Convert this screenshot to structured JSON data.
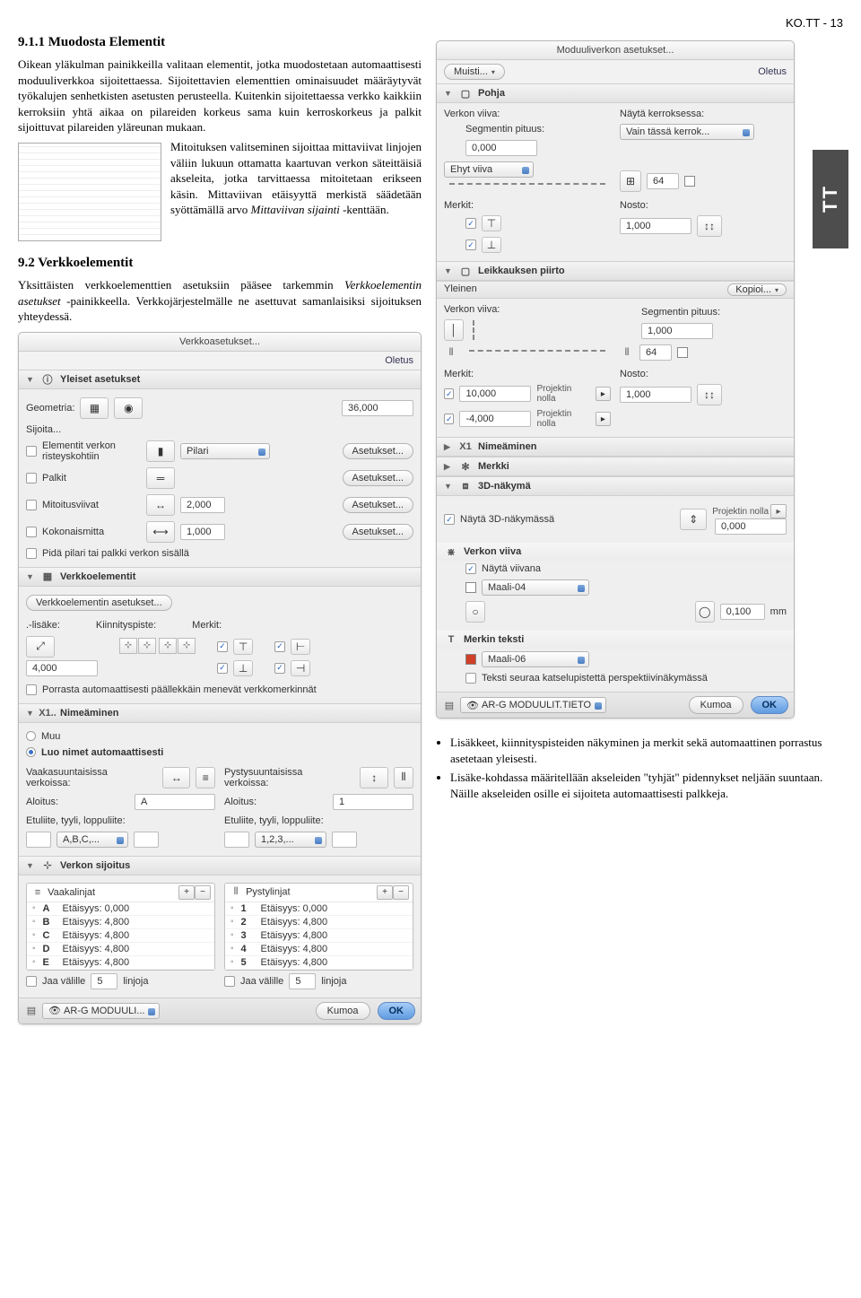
{
  "page_header": "KO.TT - 13",
  "side_tab": "TT",
  "text": {
    "h911": "9.1.1  Muodosta Elementit",
    "p1": "Oikean yläkulman painikkeilla valitaan elementit, jotka muodostetaan automaattisesti moduuliverkkoa sijoitettaessa. Sijoitettavien elementtien ominaisuudet määräytyvät työkalujen senhetkisten asetusten perusteella. Kuitenkin sijoitettaessa verkko kaikkiin kerroksiin yhtä aikaa on pilareiden korkeus sama kuin kerroskorkeus ja palkit sijoittuvat pilareiden yläreunan mukaan.",
    "p2a": "Mitoituksen valitseminen sijoittaa mittaviivat linjojen väliin lukuun ottamatta kaartuvan verkon säteittäisiä akseleita, jotka tarvittaessa mitoitetaan erikseen käsin. Mittaviivan etäisyyttä merkistä säädetään syöttämällä arvo ",
    "p2b": "Mittaviivan sijainti",
    "p2c": " -kenttään.",
    "h92": "9.2   Verkkoelementit",
    "p3a": "Yksittäisten verkkoelementtien asetuksiin pääsee tarkemmin ",
    "p3b": "Verkkoelementin asetukset",
    "p3c": " -painikkeella. Verkkojärjestelmälle ne asettuvat samanlaisiksi sijoituksen yhteydessä.",
    "bul1": "Lisäkkeet, kiinnityspisteiden näkyminen ja merkit sekä automaattinen porrastus asetetaan yleisesti.",
    "bul2": "Lisäke-kohdassa määritellään akseleiden \"tyhjät\" pidennykset neljään suuntaan. Näille akseleiden osille ei sijoiteta automaattisesti palkkeja."
  },
  "verkko": {
    "title": "Verkkoasetukset...",
    "oletus": "Oletus",
    "s_yleiset": "Yleiset asetukset",
    "geometria": "Geometria:",
    "geom_val": "36,000",
    "sijoita": "Sijoita...",
    "row_e1": "Elementit verkon risteyskohtiin",
    "pilari": "Pilari",
    "asetukset": "Asetukset...",
    "row_e2": "Palkit",
    "row_e3": "Mitoitusviivat",
    "mit_val": "2,000",
    "row_e4": "Kokonaismitta",
    "kok_val": "1,000",
    "pida": "Pidä pilari tai palkki verkon sisällä",
    "s_verkko": "Verkkoelementit",
    "ve_btn": "Verkkoelementin asetukset...",
    "lisake": ".-lisäke:",
    "kiinn": "Kiinnityspiste:",
    "merkit": "Merkit:",
    "lisake_val": "4,000",
    "porrasta": "Porrasta automaattisesti päällekkäin menevät verkkomerkinnät",
    "s_nime": "Nimeäminen",
    "rad_muu": "Muu",
    "rad_auto": "Luo nimet automaattisesti",
    "vaaka_lbl": "Vaakasuuntaisissa verkoissa:",
    "pysty_lbl": "Pystysuuntaisissa verkoissa:",
    "aloitus": "Aloitus:",
    "aloitus_a": "A",
    "aloitus_1": "1",
    "etuliite": "Etuliite, tyyli, loppuliite:",
    "abc": "A,B,C,...",
    "n123": "1,2,3,...",
    "s_sijoitus": "Verkon sijoitus",
    "vaakalinjat": "Vaakalinjat",
    "pystylinjat": "Pystylinjat",
    "h_rows": [
      {
        "k": "A",
        "v": "Etäisyys: 0,000"
      },
      {
        "k": "B",
        "v": "Etäisyys: 4,800"
      },
      {
        "k": "C",
        "v": "Etäisyys: 4,800"
      },
      {
        "k": "D",
        "v": "Etäisyys: 4,800"
      },
      {
        "k": "E",
        "v": "Etäisyys: 4,800"
      }
    ],
    "v_rows": [
      {
        "k": "1",
        "v": "Etäisyys: 0,000"
      },
      {
        "k": "2",
        "v": "Etäisyys: 4,800"
      },
      {
        "k": "3",
        "v": "Etäisyys: 4,800"
      },
      {
        "k": "4",
        "v": "Etäisyys: 4,800"
      },
      {
        "k": "5",
        "v": "Etäisyys: 4,800"
      }
    ],
    "jaa": "Jaa välille",
    "jaa_n": "5",
    "linjoja": "linjoja",
    "layer": "AR-G MODUULI...",
    "kumoa": "Kumoa",
    "ok": "OK"
  },
  "mod": {
    "title": "Moduuliverkon asetukset...",
    "muisti": "Muisti...",
    "oletus": "Oletus",
    "s_pohja": "Pohja",
    "verkon_viiva": "Verkon viiva:",
    "nayta_ker": "Näytä kerroksessa:",
    "seg_pit": "Segmentin pituus:",
    "seg_v": "0,000",
    "ker_sel": "Vain tässä kerrok...",
    "ehyt": "Ehyt viiva",
    "ehyt_n": "64",
    "merkit": "Merkit:",
    "nosto": "Nosto:",
    "nosto_v": "1,000",
    "s_leik": "Leikkauksen piirto",
    "yleinen": "Yleinen",
    "kopioi": "Kopioi...",
    "proj0": "Projektin nolla",
    "m_a": "10,000",
    "m_b": "-4,000",
    "nosto2": "1,000",
    "seg2": "1,000",
    "ehyt2": "64",
    "s_nime": "Nimeäminen",
    "s_merkki": "Merkki",
    "s_3d": "3D-näkymä",
    "nayta3d": "Näytä 3D-näkymässä",
    "pnolla_v": "0,000",
    "s_verkon_viiva": "Verkon viiva",
    "nayta_viiva": "Näytä viivana",
    "maali04": "Maali-04",
    "pen_v": "0,100",
    "mm": "mm",
    "s_merkin_teksti": "Merkin teksti",
    "maali06": "Maali-06",
    "teksti_seuraa": "Teksti seuraa katselupistettä perspektiivinäkymässä",
    "layer": "AR-G MODUULIT.TIETO",
    "kumoa": "Kumoa",
    "ok": "OK"
  }
}
